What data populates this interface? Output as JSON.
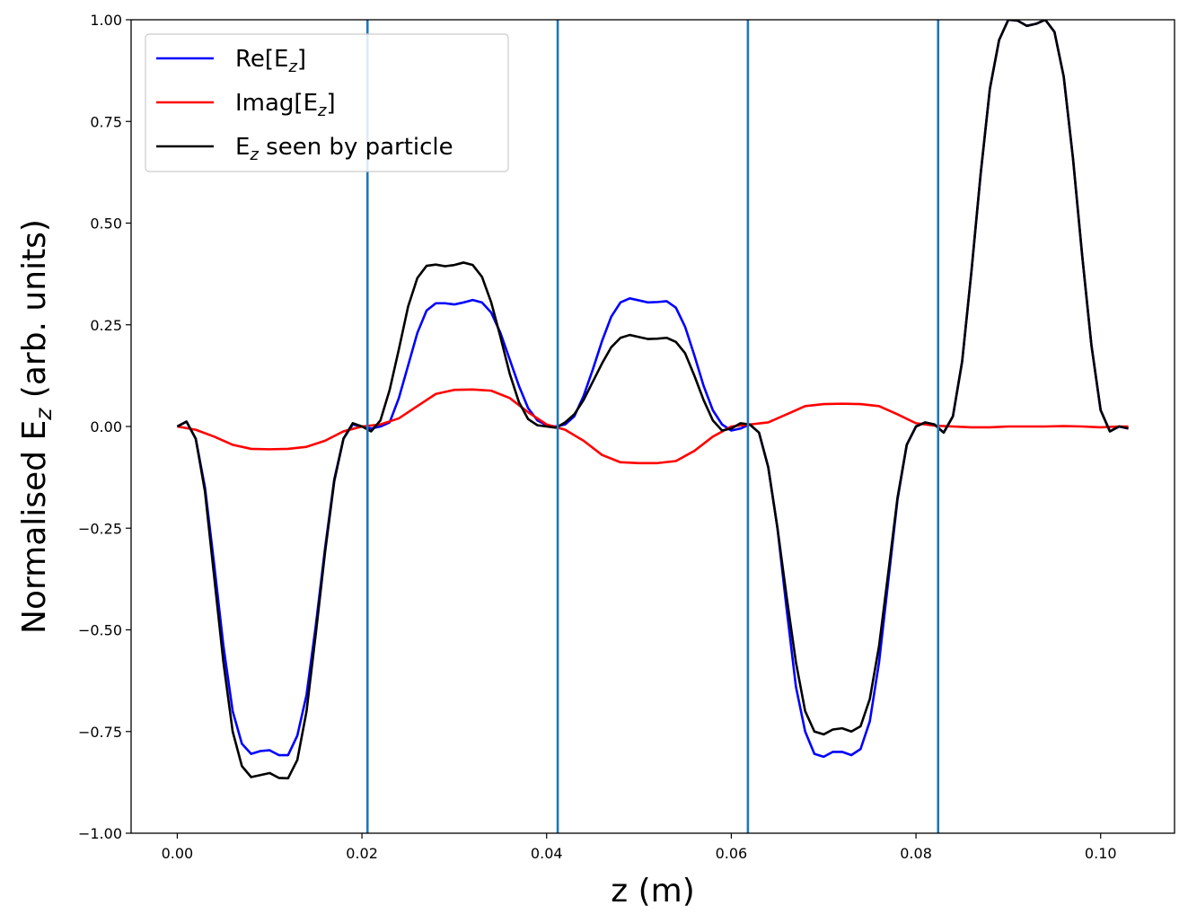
{
  "chart_data": {
    "type": "line",
    "xlabel": "z (m)",
    "ylabel": "Normalised E_z (arb. units)",
    "ylabel_parts": {
      "pre": "Normalised E",
      "sub": "z",
      "post": " (arb. units)"
    },
    "xlim": [
      -0.005,
      0.108
    ],
    "ylim": [
      -1.0,
      1.0
    ],
    "x_ticks": [
      0.0,
      0.02,
      0.04,
      0.06,
      0.08,
      0.1
    ],
    "x_tick_labels": [
      "0.00",
      "0.02",
      "0.04",
      "0.06",
      "0.08",
      "0.10"
    ],
    "y_ticks": [
      -1.0,
      -0.75,
      -0.5,
      -0.25,
      0.0,
      0.25,
      0.5,
      0.75,
      1.0
    ],
    "y_tick_labels": [
      "−1.00",
      "−0.75",
      "−0.50",
      "−0.25",
      "0.00",
      "0.25",
      "0.50",
      "0.75",
      "1.00"
    ],
    "grid": false,
    "legend_position": "top-left",
    "vlines": {
      "color": "#1f77b4",
      "x": [
        0.0206,
        0.0412,
        0.0618,
        0.0824
      ]
    },
    "series": [
      {
        "name": "Re[E_z]",
        "legend": {
          "pre": "Re[E",
          "sub": "z",
          "post": "]"
        },
        "color": "#0000ff",
        "x": [
          0.0,
          0.001,
          0.002,
          0.003,
          0.004,
          0.005,
          0.006,
          0.007,
          0.008,
          0.009,
          0.01,
          0.011,
          0.012,
          0.013,
          0.014,
          0.015,
          0.016,
          0.017,
          0.018,
          0.019,
          0.02,
          0.021,
          0.022,
          0.023,
          0.024,
          0.025,
          0.026,
          0.027,
          0.028,
          0.029,
          0.03,
          0.031,
          0.032,
          0.033,
          0.034,
          0.035,
          0.036,
          0.037,
          0.038,
          0.039,
          0.04,
          0.041,
          0.042,
          0.043,
          0.044,
          0.045,
          0.046,
          0.047,
          0.048,
          0.049,
          0.05,
          0.051,
          0.052,
          0.053,
          0.054,
          0.055,
          0.056,
          0.057,
          0.058,
          0.059,
          0.06,
          0.061,
          0.062,
          0.063,
          0.064,
          0.065,
          0.066,
          0.067,
          0.068,
          0.069,
          0.07,
          0.071,
          0.072,
          0.073,
          0.074,
          0.075,
          0.076,
          0.077,
          0.078,
          0.079,
          0.08,
          0.081,
          0.082,
          0.083,
          0.084,
          0.085,
          0.086,
          0.087,
          0.088,
          0.089,
          0.09,
          0.091,
          0.092,
          0.093,
          0.094,
          0.095,
          0.096,
          0.097,
          0.098,
          0.099,
          0.1,
          0.101,
          0.102,
          0.103
        ],
        "values": [
          0.0,
          0.012,
          -0.03,
          -0.15,
          -0.34,
          -0.54,
          -0.7,
          -0.78,
          -0.805,
          -0.798,
          -0.796,
          -0.808,
          -0.808,
          -0.76,
          -0.66,
          -0.49,
          -0.3,
          -0.13,
          -0.03,
          0.005,
          0.0,
          -0.005,
          0.0,
          0.01,
          0.07,
          0.15,
          0.23,
          0.285,
          0.303,
          0.303,
          0.3,
          0.305,
          0.311,
          0.305,
          0.28,
          0.23,
          0.165,
          0.1,
          0.045,
          0.015,
          0.003,
          0.0,
          0.005,
          0.025,
          0.075,
          0.14,
          0.21,
          0.27,
          0.305,
          0.315,
          0.31,
          0.305,
          0.306,
          0.308,
          0.292,
          0.245,
          0.175,
          0.1,
          0.04,
          0.005,
          -0.01,
          -0.005,
          0.005,
          -0.015,
          -0.1,
          -0.25,
          -0.45,
          -0.64,
          -0.75,
          -0.805,
          -0.812,
          -0.8,
          -0.8,
          -0.808,
          -0.793,
          -0.725,
          -0.58,
          -0.38,
          -0.18,
          -0.045,
          0.0,
          0.01,
          0.005,
          -0.015,
          0.025,
          0.16,
          0.38,
          0.62,
          0.83,
          0.95,
          1.0,
          0.998,
          0.985,
          0.99,
          1.0,
          0.97,
          0.86,
          0.66,
          0.42,
          0.2,
          0.04,
          -0.012,
          0.0,
          -0.005
        ]
      },
      {
        "name": "Imag[E_z]",
        "legend": {
          "pre": "Imag[E",
          "sub": "z",
          "post": "]"
        },
        "color": "#ff0000",
        "x": [
          0.0,
          0.002,
          0.004,
          0.006,
          0.008,
          0.01,
          0.012,
          0.014,
          0.016,
          0.018,
          0.02,
          0.022,
          0.024,
          0.026,
          0.028,
          0.03,
          0.032,
          0.034,
          0.036,
          0.038,
          0.04,
          0.042,
          0.044,
          0.046,
          0.048,
          0.05,
          0.052,
          0.054,
          0.056,
          0.058,
          0.06,
          0.062,
          0.064,
          0.066,
          0.068,
          0.07,
          0.072,
          0.074,
          0.076,
          0.078,
          0.08,
          0.082,
          0.084,
          0.086,
          0.088,
          0.09,
          0.092,
          0.094,
          0.096,
          0.098,
          0.1,
          0.102,
          0.103
        ],
        "values": [
          0.0,
          -0.008,
          -0.025,
          -0.045,
          -0.055,
          -0.056,
          -0.055,
          -0.05,
          -0.035,
          -0.012,
          0.0,
          0.005,
          0.02,
          0.05,
          0.08,
          0.09,
          0.091,
          0.088,
          0.07,
          0.035,
          0.005,
          -0.008,
          -0.035,
          -0.07,
          -0.088,
          -0.09,
          -0.09,
          -0.085,
          -0.06,
          -0.025,
          0.0,
          0.005,
          0.01,
          0.03,
          0.05,
          0.055,
          0.056,
          0.055,
          0.05,
          0.03,
          0.008,
          0.002,
          0.0,
          -0.002,
          -0.002,
          0.0,
          0.0,
          0.0,
          0.001,
          0.0,
          -0.002,
          0.0,
          0.0
        ]
      },
      {
        "name": "E_z seen by particle",
        "legend": {
          "pre": "E",
          "sub": "z",
          "post": " seen by particle"
        },
        "color": "#000000",
        "x": [
          0.0,
          0.001,
          0.002,
          0.003,
          0.004,
          0.005,
          0.006,
          0.007,
          0.008,
          0.009,
          0.01,
          0.011,
          0.012,
          0.013,
          0.014,
          0.015,
          0.016,
          0.017,
          0.018,
          0.019,
          0.02,
          0.021,
          0.022,
          0.023,
          0.024,
          0.025,
          0.026,
          0.027,
          0.028,
          0.029,
          0.03,
          0.031,
          0.032,
          0.033,
          0.034,
          0.035,
          0.036,
          0.037,
          0.038,
          0.039,
          0.04,
          0.041,
          0.042,
          0.043,
          0.044,
          0.045,
          0.046,
          0.047,
          0.048,
          0.049,
          0.05,
          0.051,
          0.052,
          0.053,
          0.054,
          0.055,
          0.056,
          0.057,
          0.058,
          0.059,
          0.06,
          0.061,
          0.062,
          0.063,
          0.064,
          0.065,
          0.066,
          0.067,
          0.068,
          0.069,
          0.07,
          0.071,
          0.072,
          0.073,
          0.074,
          0.075,
          0.076,
          0.077,
          0.078,
          0.079,
          0.08,
          0.081,
          0.082,
          0.083,
          0.084,
          0.085,
          0.086,
          0.087,
          0.088,
          0.089,
          0.09,
          0.091,
          0.092,
          0.093,
          0.094,
          0.095,
          0.096,
          0.097,
          0.098,
          0.099,
          0.1,
          0.101,
          0.102,
          0.103
        ],
        "values": [
          0.0,
          0.012,
          -0.03,
          -0.16,
          -0.37,
          -0.58,
          -0.75,
          -0.835,
          -0.862,
          -0.857,
          -0.852,
          -0.864,
          -0.865,
          -0.82,
          -0.7,
          -0.51,
          -0.31,
          -0.135,
          -0.03,
          0.008,
          0.0,
          -0.012,
          0.015,
          0.09,
          0.19,
          0.295,
          0.365,
          0.395,
          0.398,
          0.394,
          0.397,
          0.403,
          0.397,
          0.368,
          0.305,
          0.22,
          0.13,
          0.06,
          0.018,
          0.003,
          0.0,
          -0.003,
          0.01,
          0.03,
          0.065,
          0.11,
          0.155,
          0.195,
          0.218,
          0.225,
          0.22,
          0.215,
          0.216,
          0.218,
          0.208,
          0.18,
          0.125,
          0.065,
          0.015,
          -0.01,
          -0.005,
          0.008,
          0.005,
          -0.015,
          -0.1,
          -0.25,
          -0.42,
          -0.58,
          -0.7,
          -0.75,
          -0.757,
          -0.745,
          -0.742,
          -0.75,
          -0.737,
          -0.67,
          -0.54,
          -0.36,
          -0.175,
          -0.045,
          0.0,
          0.01,
          0.005,
          -0.015,
          0.025,
          0.16,
          0.38,
          0.62,
          0.83,
          0.95,
          1.0,
          0.998,
          0.985,
          0.99,
          1.0,
          0.97,
          0.86,
          0.66,
          0.42,
          0.2,
          0.04,
          -0.012,
          0.0,
          -0.005
        ]
      }
    ]
  }
}
